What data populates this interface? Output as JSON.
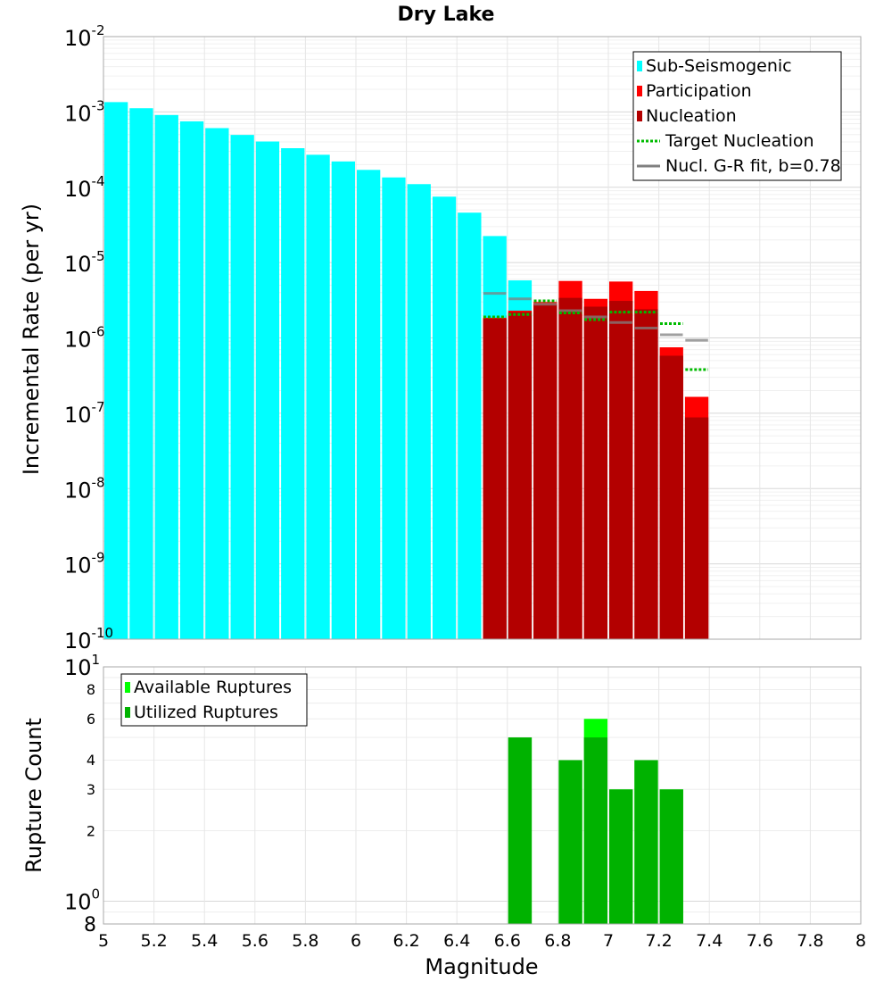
{
  "chart_data": [
    {
      "type": "bar",
      "title": "Dry Lake",
      "xlabel": "",
      "ylabel": "Incremental Rate (per yr)",
      "yscale": "log",
      "ylim": [
        1e-10,
        0.01
      ],
      "xlim": [
        5,
        8
      ],
      "y_tick_exponents": [
        "-10",
        "-9",
        "-8",
        "-7",
        "-6",
        "-5",
        "-4",
        "-3",
        "-2"
      ],
      "legend_position": "top-right",
      "bin_width": 0.1,
      "series": [
        {
          "name": "Sub-Seismogenic",
          "color": "#00ffff",
          "x": [
            5.05,
            5.15,
            5.25,
            5.35,
            5.45,
            5.55,
            5.65,
            5.75,
            5.85,
            5.95,
            6.05,
            6.15,
            6.25,
            6.35,
            6.45,
            6.55,
            6.65
          ],
          "values": [
            0.00135,
            0.00112,
            0.00091,
            0.00075,
            0.00061,
            0.000495,
            0.000405,
            0.00033,
            0.00027,
            0.00022,
            0.00017,
            0.000135,
            0.00011,
            7.5e-05,
            4.6e-05,
            2.25e-05,
            5.8e-06
          ]
        },
        {
          "name": "Participation",
          "color": "#ff0000",
          "x": [
            6.55,
            6.65,
            6.75,
            6.85,
            6.95,
            7.05,
            7.15,
            7.25,
            7.35
          ],
          "values": [
            1.85e-06,
            2.3e-06,
            3e-06,
            5.7e-06,
            3.3e-06,
            5.6e-06,
            4.2e-06,
            7.5e-07,
            1.65e-07
          ]
        },
        {
          "name": "Nucleation",
          "color": "#b30000",
          "x": [
            6.55,
            6.65,
            6.75,
            6.85,
            6.95,
            7.05,
            7.15,
            7.25,
            7.35
          ],
          "values": [
            1.8e-06,
            2.2e-06,
            2.8e-06,
            3.4e-06,
            2.6e-06,
            3.1e-06,
            2.4e-06,
            5.8e-07,
            8.8e-08
          ]
        },
        {
          "name": "Target Nucleation",
          "color": "#00bb00",
          "style": "dotted",
          "x": [
            6.55,
            6.65,
            6.75,
            6.85,
            6.95,
            7.05,
            7.15,
            7.25,
            7.35
          ],
          "values": [
            1.9e-06,
            2.05e-06,
            3.1e-06,
            2.15e-06,
            1.75e-06,
            2.2e-06,
            2.2e-06,
            1.55e-06,
            3.8e-07
          ]
        },
        {
          "name": "Nucl. G-R fit, b=0.78",
          "color": "#808080",
          "style": "solid",
          "x": [
            6.55,
            6.65,
            6.75,
            6.85,
            6.95,
            7.05,
            7.15,
            7.25,
            7.35
          ],
          "values": [
            3.9e-06,
            3.3e-06,
            2.8e-06,
            2.3e-06,
            1.9e-06,
            1.6e-06,
            1.35e-06,
            1.1e-06,
            9.3e-07
          ]
        }
      ]
    },
    {
      "type": "bar",
      "title": "",
      "xlabel": "Magnitude",
      "ylabel": "Rupture Count",
      "yscale": "log",
      "ylim": [
        0.8,
        10
      ],
      "xlim": [
        5,
        8
      ],
      "x_ticks": [
        "5",
        "5.2",
        "5.4",
        "5.6",
        "5.8",
        "6",
        "6.2",
        "6.4",
        "6.6",
        "6.8",
        "7",
        "7.2",
        "7.4",
        "7.6",
        "7.8",
        "8"
      ],
      "y_minor_tick_labels": [
        "8",
        "2",
        "3",
        "4",
        "6",
        "8"
      ],
      "y_decade_labels": [
        "10",
        "10"
      ],
      "y_decade_exponents": [
        "0",
        "1"
      ],
      "legend_position": "top-left",
      "bin_width": 0.1,
      "series": [
        {
          "name": "Available Ruptures",
          "color": "#00ff00",
          "x": [
            6.65,
            6.85,
            6.95,
            7.05,
            7.15,
            7.25
          ],
          "values": [
            5,
            4,
            6,
            3,
            4,
            3
          ]
        },
        {
          "name": "Utilized Ruptures",
          "color": "#00b200",
          "x": [
            6.65,
            6.85,
            6.95,
            7.05,
            7.15,
            7.25
          ],
          "values": [
            5,
            4,
            5,
            3,
            4,
            3
          ]
        }
      ]
    }
  ]
}
